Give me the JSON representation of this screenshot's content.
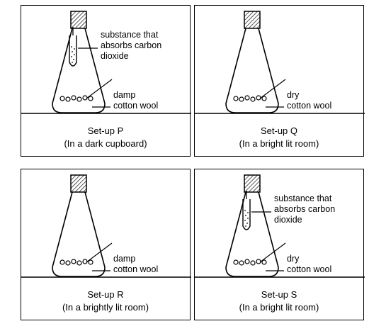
{
  "panels": [
    {
      "id": "P",
      "title": "Set-up P",
      "condition": "(In a dark cupboard)",
      "cotton": {
        "line1": "damp",
        "line2": "cotton wool"
      },
      "tube": {
        "present": true,
        "line1": "substance that",
        "line2": "absorbs carbon",
        "line3": "dioxide"
      }
    },
    {
      "id": "Q",
      "title": "Set-up Q",
      "condition": "(In a bright lit room)",
      "cotton": {
        "line1": "dry",
        "line2": "cotton wool"
      },
      "tube": {
        "present": false
      }
    },
    {
      "id": "R",
      "title": "Set-up R",
      "condition": "(In a brightly lit room)",
      "cotton": {
        "line1": "damp",
        "line2": "cotton wool"
      },
      "tube": {
        "present": false
      }
    },
    {
      "id": "S",
      "title": "Set-up S",
      "condition": "(In a bright lit room)",
      "cotton": {
        "line1": "dry",
        "line2": "cotton wool"
      },
      "tube": {
        "present": true,
        "line1": "substance that",
        "line2": "absorbs carbon",
        "line3": "dioxide"
      }
    }
  ]
}
